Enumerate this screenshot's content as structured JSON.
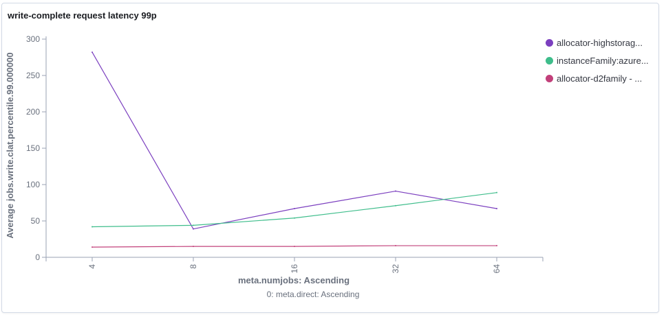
{
  "panel": {
    "title": "write-complete request latency 99p"
  },
  "chart_data": {
    "type": "line",
    "title": "write-complete request latency 99p",
    "xlabel": "meta.numjobs: Ascending",
    "xsublabel": "0: meta.direct: Ascending",
    "ylabel": "Average jobs.write.clat.percentile.99.000000",
    "categories": [
      "4",
      "8",
      "16",
      "32",
      "64"
    ],
    "yticks": [
      0,
      50,
      100,
      150,
      200,
      250,
      300
    ],
    "ylim": [
      0,
      300
    ],
    "grid": false,
    "legend_position": "right",
    "series": [
      {
        "name": "allocator-highstorag...",
        "color": "#7b3fbf",
        "values": [
          282,
          39,
          67,
          91,
          67
        ]
      },
      {
        "name": "instanceFamily:azure...",
        "color": "#3ebd8b",
        "values": [
          42,
          44,
          54,
          71,
          89
        ]
      },
      {
        "name": "allocator-d2family - ...",
        "color": "#c2407a",
        "values": [
          14,
          15,
          15,
          16,
          16
        ]
      }
    ]
  }
}
